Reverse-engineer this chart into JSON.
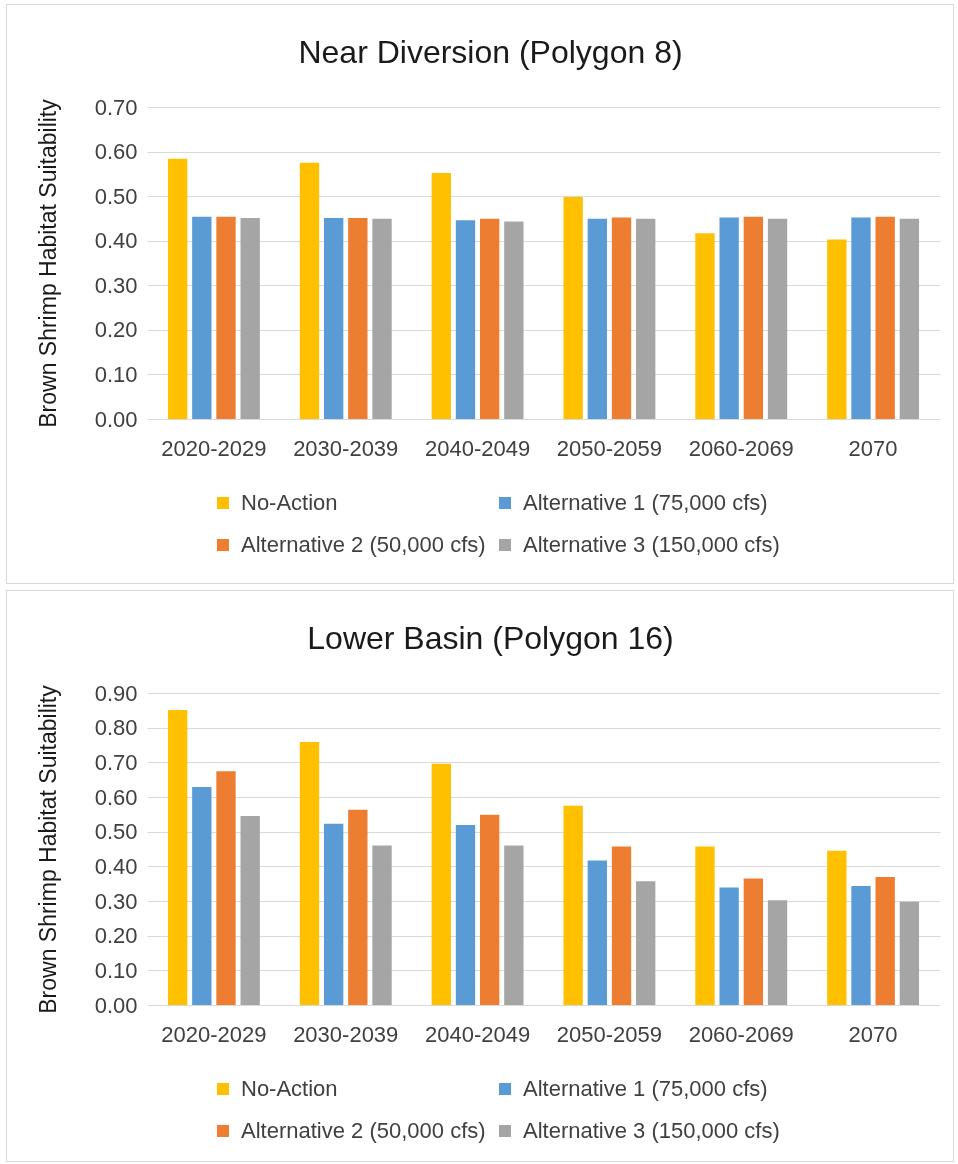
{
  "chart_data": [
    {
      "type": "bar",
      "title": "Near Diversion (Polygon 8)",
      "ylabel": "Brown Shrimp Habitat Suitability",
      "categories": [
        "2020-2029",
        "2030-2039",
        "2040-2049",
        "2050-2059",
        "2060-2069",
        "2070"
      ],
      "series": [
        {
          "name": "No-Action",
          "color": "#ffc000",
          "values": [
            0.584,
            0.575,
            0.552,
            0.498,
            0.417,
            0.403
          ]
        },
        {
          "name": "Alternative 1 (75,000 cfs)",
          "color": "#5b9bd5",
          "values": [
            0.454,
            0.451,
            0.446,
            0.449,
            0.452,
            0.452
          ]
        },
        {
          "name": "Alternative 2 (50,000 cfs)",
          "color": "#ed7d31",
          "values": [
            0.454,
            0.451,
            0.449,
            0.452,
            0.454,
            0.454
          ]
        },
        {
          "name": "Alternative 3 (150,000 cfs)",
          "color": "#a5a5a5",
          "values": [
            0.451,
            0.449,
            0.443,
            0.449,
            0.449,
            0.449
          ]
        }
      ],
      "ylim": [
        0,
        0.7
      ],
      "yticks": [
        {
          "value": 0,
          "label": "0.00"
        },
        {
          "value": 0.1,
          "label": "0.10"
        },
        {
          "value": 0.2,
          "label": "0.20"
        },
        {
          "value": 0.3,
          "label": "0.30"
        },
        {
          "value": 0.4,
          "label": "0.40"
        },
        {
          "value": 0.5,
          "label": "0.50"
        },
        {
          "value": 0.6,
          "label": "0.60"
        },
        {
          "value": 0.7,
          "label": "0.70"
        }
      ],
      "grid": "y",
      "legend": "bottom"
    },
    {
      "type": "bar",
      "title": "Lower Basin (Polygon 16)",
      "ylabel": "Brown Shrimp Habitat Suitability",
      "categories": [
        "2020-2029",
        "2030-2039",
        "2040-2049",
        "2050-2059",
        "2060-2069",
        "2070"
      ],
      "series": [
        {
          "name": "No-Action",
          "color": "#ffc000",
          "values": [
            0.851,
            0.759,
            0.696,
            0.575,
            0.457,
            0.445
          ]
        },
        {
          "name": "Alternative 1 (75,000 cfs)",
          "color": "#5b9bd5",
          "values": [
            0.629,
            0.523,
            0.519,
            0.417,
            0.339,
            0.343
          ]
        },
        {
          "name": "Alternative 2 (50,000 cfs)",
          "color": "#ed7d31",
          "values": [
            0.674,
            0.563,
            0.549,
            0.457,
            0.365,
            0.369
          ]
        },
        {
          "name": "Alternative 3 (150,000 cfs)",
          "color": "#a5a5a5",
          "values": [
            0.545,
            0.46,
            0.46,
            0.357,
            0.302,
            0.298
          ]
        }
      ],
      "ylim": [
        0,
        0.9
      ],
      "yticks": [
        {
          "value": 0,
          "label": "0.00"
        },
        {
          "value": 0.1,
          "label": "0.10"
        },
        {
          "value": 0.2,
          "label": "0.20"
        },
        {
          "value": 0.3,
          "label": "0.30"
        },
        {
          "value": 0.4,
          "label": "0.40"
        },
        {
          "value": 0.5,
          "label": "0.50"
        },
        {
          "value": 0.6,
          "label": "0.60"
        },
        {
          "value": 0.7,
          "label": "0.70"
        },
        {
          "value": 0.8,
          "label": "0.80"
        },
        {
          "value": 0.9,
          "label": "0.90"
        }
      ],
      "grid": "y",
      "legend": "bottom"
    }
  ]
}
